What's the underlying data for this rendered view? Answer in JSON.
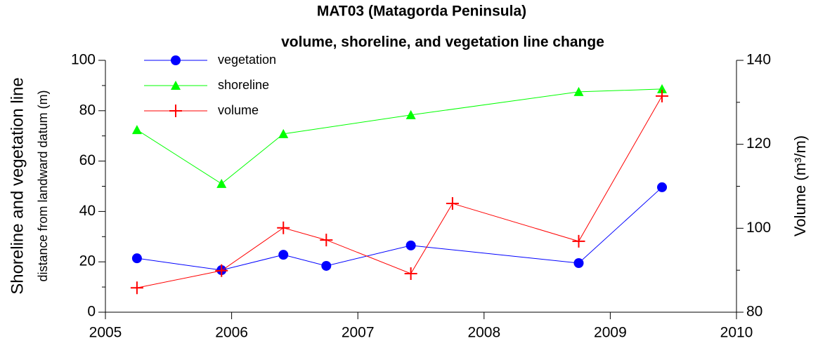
{
  "chart_data": {
    "type": "line",
    "title": [
      "MAT03 (Matagorda Peninsula)",
      "volume, shoreline, and vegetation line change"
    ],
    "y_label": "Shoreline and vegetation line",
    "y_sublabel": "distance from landward datum (m)",
    "y2_label": "Volume (m³/m)",
    "xlim": [
      2005,
      2010
    ],
    "xticks": [
      2005,
      2006,
      2007,
      2008,
      2009,
      2010
    ],
    "ylim": [
      0,
      100
    ],
    "yticks": [
      0,
      20,
      40,
      60,
      80,
      100
    ],
    "yminorticks": [
      10,
      30,
      50,
      70,
      90
    ],
    "y2lim": [
      80,
      140
    ],
    "y2ticks": [
      80,
      100,
      120,
      140
    ],
    "y2minorticks": [
      90,
      110,
      130
    ],
    "legend": "upper left",
    "series": [
      {
        "name": "vegetation",
        "color": "#0000ff",
        "marker": "circle",
        "x": [
          2005.25,
          2005.92,
          2006.41,
          2006.75,
          2007.42,
          2008.75,
          2009.41
        ],
        "values": [
          21.4,
          16.7,
          22.8,
          18.4,
          26.5,
          19.5,
          49.6
        ]
      },
      {
        "name": "shoreline",
        "color": "#00ff00",
        "marker": "triangle",
        "x": [
          2005.25,
          2005.92,
          2006.41,
          2007.42,
          2008.75,
          2009.41
        ],
        "values": [
          72.4,
          51,
          70.8,
          78.3,
          87.5,
          88.6
        ]
      },
      {
        "name": "volume",
        "color": "#ff0000",
        "marker": "plus",
        "axis": "y2",
        "x": [
          2005.25,
          2005.92,
          2006.41,
          2006.75,
          2007.42,
          2007.75,
          2008.75,
          2009.41
        ],
        "values": [
          85.8,
          89.9,
          100.1,
          97.2,
          89.2,
          105.9,
          96.9,
          131.5
        ]
      }
    ]
  }
}
